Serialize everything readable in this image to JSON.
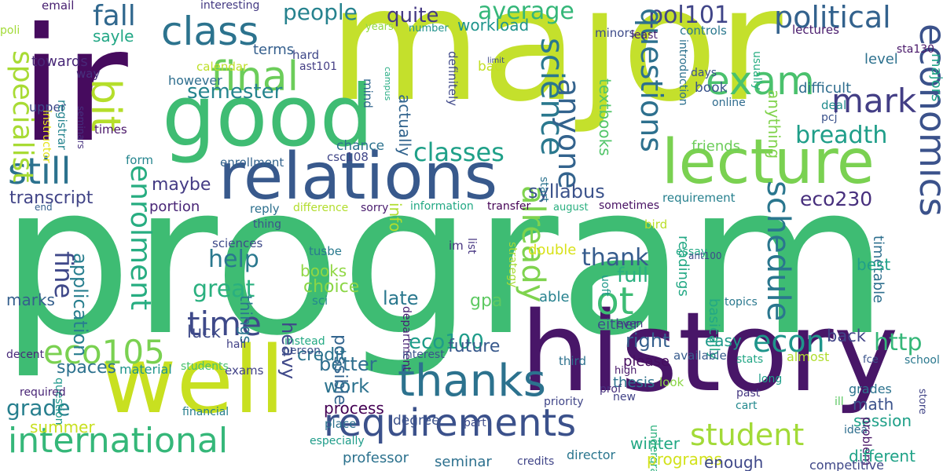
{
  "words": [
    {
      "text": "program",
      "color": "#3ebc73",
      "vertical": false
    },
    {
      "text": "major",
      "color": "#c4e02c",
      "vertical": false
    },
    {
      "text": "ir",
      "color": "#460b5e",
      "vertical": false
    },
    {
      "text": "history",
      "color": "#481668",
      "vertical": false
    },
    {
      "text": "well",
      "color": "#c8e020",
      "vertical": false
    },
    {
      "text": "good",
      "color": "#3fbc73",
      "vertical": false
    },
    {
      "text": "relations",
      "color": "#38598c",
      "vertical": false
    },
    {
      "text": "lecture",
      "color": "#7ad151",
      "vertical": false
    },
    {
      "text": "requirements",
      "color": "#3b518b",
      "vertical": false
    },
    {
      "text": "international",
      "color": "#35b779",
      "vertical": false
    },
    {
      "text": "thanks",
      "color": "#2c728e",
      "vertical": false
    },
    {
      "text": "class",
      "color": "#2c738e",
      "vertical": false
    },
    {
      "text": "final",
      "color": "#6ccd5a",
      "vertical": false
    },
    {
      "text": "eco105",
      "color": "#7ad151",
      "vertical": false
    },
    {
      "text": "time",
      "color": "#3e4989",
      "vertical": false
    },
    {
      "text": "lot",
      "color": "#3dbc74",
      "vertical": false
    },
    {
      "text": "student",
      "color": "#a2da37",
      "vertical": false
    },
    {
      "text": "bit",
      "color": "#b5de2b",
      "vertical": true
    },
    {
      "text": "still",
      "color": "#2c728e",
      "vertical": false
    },
    {
      "text": "mark",
      "color": "#433e85",
      "vertical": false
    },
    {
      "text": "exam",
      "color": "#4ac16d",
      "vertical": false
    },
    {
      "text": "political",
      "color": "#33628d",
      "vertical": false
    },
    {
      "text": "pol101",
      "color": "#404588",
      "vertical": false
    },
    {
      "text": "breadth",
      "color": "#1f9e89",
      "vertical": false
    },
    {
      "text": "average",
      "color": "#35b779",
      "vertical": false
    },
    {
      "text": "people",
      "color": "#26828e",
      "vertical": false
    },
    {
      "text": "quite",
      "color": "#443983",
      "vertical": false
    },
    {
      "text": "fall",
      "color": "#31688e",
      "vertical": false
    },
    {
      "text": "semester",
      "color": "#25848e",
      "vertical": false
    },
    {
      "text": "classes",
      "color": "#1fa088",
      "vertical": false
    },
    {
      "text": "science",
      "color": "#2a788e",
      "vertical": true
    },
    {
      "text": "questions",
      "color": "#2d708e",
      "vertical": true
    },
    {
      "text": "thank",
      "color": "#365c8d",
      "vertical": false
    },
    {
      "text": "help",
      "color": "#2a788e",
      "vertical": false
    },
    {
      "text": "great",
      "color": "#2ab07f",
      "vertical": false
    },
    {
      "text": "already",
      "color": "#7fd34e",
      "vertical": true
    },
    {
      "text": "econ",
      "color": "#1f958b",
      "vertical": false
    },
    {
      "text": "http",
      "color": "#35b779",
      "vertical": false
    },
    {
      "text": "economics",
      "color": "#3b528b",
      "vertical": true
    },
    {
      "text": "schedule",
      "color": "#2a768e",
      "vertical": true
    },
    {
      "text": "anyone",
      "color": "#33638d",
      "vertical": true
    },
    {
      "text": "enrolment",
      "color": "#27ad81",
      "vertical": true
    },
    {
      "text": "syllabus",
      "color": "#3b528b",
      "vertical": false
    },
    {
      "text": "right",
      "color": "#355f8d",
      "vertical": false
    },
    {
      "text": "grade",
      "color": "#277f8e",
      "vertical": false
    },
    {
      "text": "better",
      "color": "#2e6e8e",
      "vertical": false
    },
    {
      "text": "work",
      "color": "#2c728e",
      "vertical": false
    },
    {
      "text": "eco230",
      "color": "#472f7d",
      "vertical": false
    },
    {
      "text": "full",
      "color": "#2ab07f",
      "vertical": false
    },
    {
      "text": "eco100",
      "color": "#1e9c89",
      "vertical": false
    },
    {
      "text": "transcript",
      "color": "#414487",
      "vertical": false
    },
    {
      "text": "fine",
      "color": "#3f4889",
      "vertical": true
    },
    {
      "text": "maybe",
      "color": "#443b84",
      "vertical": false
    },
    {
      "text": "specialist",
      "color": "#a8db34",
      "vertical": true
    },
    {
      "text": "workload",
      "color": "#1f948c",
      "vertical": false
    },
    {
      "text": "sayle",
      "color": "#22a785",
      "vertical": false
    },
    {
      "text": "terms",
      "color": "#355f8d",
      "vertical": false
    },
    {
      "text": "towards",
      "color": "#482777",
      "vertical": false
    },
    {
      "text": "email",
      "color": "#482071",
      "vertical": false
    },
    {
      "text": "interesting",
      "color": "#443a83",
      "vertical": false
    },
    {
      "text": "calendar",
      "color": "#bddf26",
      "vertical": false
    },
    {
      "text": "hard",
      "color": "#3f4889",
      "vertical": false
    },
    {
      "text": "ast101",
      "color": "#433d84",
      "vertical": false
    },
    {
      "text": "bad",
      "color": "#c2df23",
      "vertical": false
    },
    {
      "text": "minors",
      "color": "#3e4c8a",
      "vertical": false
    },
    {
      "text": "controls",
      "color": "#2a788e",
      "vertical": false
    },
    {
      "text": "lectures",
      "color": "#481a6c",
      "vertical": false
    },
    {
      "text": "level",
      "color": "#2d718e",
      "vertical": false
    },
    {
      "text": "difficult",
      "color": "#2e6d8e",
      "vertical": false
    },
    {
      "text": "book",
      "color": "#3a548c",
      "vertical": false
    },
    {
      "text": "online",
      "color": "#2f6b8e",
      "vertical": false
    },
    {
      "text": "days",
      "color": "#3b518b",
      "vertical": false
    },
    {
      "text": "deal",
      "color": "#228c8d",
      "vertical": false
    },
    {
      "text": "pcj",
      "color": "#3b528b",
      "vertical": false
    },
    {
      "text": "sta130",
      "color": "#481769",
      "vertical": false
    },
    {
      "text": "majors",
      "color": "#1fa287",
      "vertical": true
    },
    {
      "text": "usually",
      "color": "#26ad81",
      "vertical": true
    },
    {
      "text": "least",
      "color": "#482172",
      "vertical": false
    },
    {
      "text": "friends",
      "color": "#6ccd5a",
      "vertical": false
    },
    {
      "text": "requirement",
      "color": "#27808e",
      "vertical": false
    },
    {
      "text": "textbooks",
      "color": "#52c569",
      "vertical": true
    },
    {
      "text": "introduction",
      "color": "#2d718e",
      "vertical": true
    },
    {
      "text": "start",
      "color": "#2c738e",
      "vertical": true
    },
    {
      "text": "anything",
      "color": "#81d34d",
      "vertical": true
    },
    {
      "text": "chance",
      "color": "#2c728e",
      "vertical": false
    },
    {
      "text": "actually",
      "color": "#32648e",
      "vertical": true
    },
    {
      "text": "definitely",
      "color": "#3f4889",
      "vertical": true
    },
    {
      "text": "mind",
      "color": "#31678e",
      "vertical": true
    },
    {
      "text": "campus",
      "color": "#25ab82",
      "vertical": true
    },
    {
      "text": "limit",
      "color": "#3e4989",
      "vertical": false
    },
    {
      "text": "years",
      "color": "#90d743",
      "vertical": false
    },
    {
      "text": "number",
      "color": "#20928c",
      "vertical": false
    },
    {
      "text": "poli",
      "color": "#a2da37",
      "vertical": false
    },
    {
      "text": "way",
      "color": "#46327e",
      "vertical": false
    },
    {
      "text": "upper",
      "color": "#3e4989",
      "vertical": false
    },
    {
      "text": "however",
      "color": "#2e6e8e",
      "vertical": false
    },
    {
      "text": "registrar",
      "color": "#25848e",
      "vertical": true
    },
    {
      "text": "instructor",
      "color": "#e5e419",
      "vertical": true
    },
    {
      "text": "seminars",
      "color": "#46307e",
      "vertical": true
    },
    {
      "text": "times",
      "color": "#481467",
      "vertical": false
    },
    {
      "text": "enrollment",
      "color": "#33638d",
      "vertical": false
    },
    {
      "text": "form",
      "color": "#25858e",
      "vertical": false
    },
    {
      "text": "csc108",
      "color": "#404688",
      "vertical": false
    },
    {
      "text": "portion",
      "color": "#482576",
      "vertical": false
    },
    {
      "text": "end",
      "color": "#355e8d",
      "vertical": false
    },
    {
      "text": "reply",
      "color": "#2d708e",
      "vertical": false
    },
    {
      "text": "difference",
      "color": "#b2dd2d",
      "vertical": false
    },
    {
      "text": "sorry",
      "color": "#481b6d",
      "vertical": false
    },
    {
      "text": "information",
      "color": "#22a884",
      "vertical": false
    },
    {
      "text": "transfer",
      "color": "#440154",
      "vertical": false
    },
    {
      "text": "august",
      "color": "#29af7f",
      "vertical": false
    },
    {
      "text": "sometimes",
      "color": "#471063",
      "vertical": false
    },
    {
      "text": "thing",
      "color": "#3b528b",
      "vertical": false
    },
    {
      "text": "bird",
      "color": "#bade28",
      "vertical": false
    },
    {
      "text": "info",
      "color": "#b0dd2f",
      "vertical": true
    },
    {
      "text": "sciences",
      "color": "#3e4a89",
      "vertical": false
    },
    {
      "text": "tusbe",
      "color": "#297a8e",
      "vertical": false
    },
    {
      "text": "im",
      "color": "#46327e",
      "vertical": false
    },
    {
      "text": "list",
      "color": "#453581",
      "vertical": true
    },
    {
      "text": "strategy",
      "color": "#a8db34",
      "vertical": true
    },
    {
      "text": "double",
      "color": "#d8e219",
      "vertical": false
    },
    {
      "text": "essay",
      "color": "#22a884",
      "vertical": false
    },
    {
      "text": "readings",
      "color": "#22a884",
      "vertical": true
    },
    {
      "text": "timetable",
      "color": "#2e6f8e",
      "vertical": true
    },
    {
      "text": "ant100",
      "color": "#3e4a89",
      "vertical": false
    },
    {
      "text": "basically",
      "color": "#22a884",
      "vertical": true
    },
    {
      "text": "best",
      "color": "#1fa088",
      "vertical": false
    },
    {
      "text": "topics",
      "color": "#2a788e",
      "vertical": false
    },
    {
      "text": "uoft",
      "color": "#1f998a",
      "vertical": true
    },
    {
      "text": "application",
      "color": "#277e8e",
      "vertical": true
    },
    {
      "text": "marks",
      "color": "#355f8d",
      "vertical": false
    },
    {
      "text": "books",
      "color": "#90d743",
      "vertical": false
    },
    {
      "text": "choice",
      "color": "#8bd646",
      "vertical": false
    },
    {
      "text": "sci",
      "color": "#23898e",
      "vertical": false
    },
    {
      "text": "gpa",
      "color": "#5ec962",
      "vertical": false
    },
    {
      "text": "department",
      "color": "#482173",
      "vertical": true
    },
    {
      "text": "able",
      "color": "#26818e",
      "vertical": false
    },
    {
      "text": "either",
      "color": "#3d4e8a",
      "vertical": false
    },
    {
      "text": "even",
      "color": "#453882",
      "vertical": false
    },
    {
      "text": "things",
      "color": "#2a768e",
      "vertical": true
    },
    {
      "text": "late",
      "color": "#2a788e",
      "vertical": false
    },
    {
      "text": "luck",
      "color": "#3e4a89",
      "vertical": false
    },
    {
      "text": "easy",
      "color": "#1f9a8a",
      "vertical": false
    },
    {
      "text": "back",
      "color": "#414487",
      "vertical": false
    },
    {
      "text": "spaces",
      "color": "#2c718e",
      "vertical": false
    },
    {
      "text": "future",
      "color": "#38598c",
      "vertical": false
    },
    {
      "text": "possible",
      "color": "#32648e",
      "vertical": true
    },
    {
      "text": "heavy",
      "color": "#3f4889",
      "vertical": true
    },
    {
      "text": "credit",
      "color": "#2c738e",
      "vertical": false
    },
    {
      "text": "process",
      "color": "#440154",
      "vertical": false
    },
    {
      "text": "instead",
      "color": "#23a983",
      "vertical": false
    },
    {
      "text": "person",
      "color": "#3c508b",
      "vertical": false
    },
    {
      "text": "hall",
      "color": "#424186",
      "vertical": false
    },
    {
      "text": "exams",
      "color": "#414287",
      "vertical": false
    },
    {
      "text": "students",
      "color": "#4ac16d",
      "vertical": false
    },
    {
      "text": "material",
      "color": "#1f958b",
      "vertical": false
    },
    {
      "text": "interest",
      "color": "#3a538b",
      "vertical": false
    },
    {
      "text": "third",
      "color": "#2d718e",
      "vertical": false
    },
    {
      "text": "please",
      "color": "#470d60",
      "vertical": false
    },
    {
      "text": "available",
      "color": "#375b8d",
      "vertical": false
    },
    {
      "text": "almost",
      "color": "#b0dd2f",
      "vertical": false
    },
    {
      "text": "fce",
      "color": "#3a548c",
      "vertical": false
    },
    {
      "text": "school",
      "color": "#2a788e",
      "vertical": false
    },
    {
      "text": "stats",
      "color": "#21a685",
      "vertical": false
    },
    {
      "text": "high",
      "color": "#48186a",
      "vertical": false
    },
    {
      "text": "long",
      "color": "#1e9d89",
      "vertical": false
    },
    {
      "text": "prof",
      "color": "#472f7d",
      "vertical": false
    },
    {
      "text": "thesis",
      "color": "#2c728e",
      "vertical": false
    },
    {
      "text": "look",
      "color": "#8bd646",
      "vertical": false
    },
    {
      "text": "past",
      "color": "#453882",
      "vertical": false
    },
    {
      "text": "cart",
      "color": "#23898e",
      "vertical": false
    },
    {
      "text": "grades",
      "color": "#2c738e",
      "vertical": false
    },
    {
      "text": "new",
      "color": "#414287",
      "vertical": false
    },
    {
      "text": "math",
      "color": "#3b528b",
      "vertical": false
    },
    {
      "text": "session",
      "color": "#1fa088",
      "vertical": false
    },
    {
      "text": "summer",
      "color": "#c8e020",
      "vertical": false
    },
    {
      "text": "question",
      "color": "#1f988b",
      "vertical": true
    },
    {
      "text": "decent",
      "color": "#482979",
      "vertical": false
    },
    {
      "text": "required",
      "color": "#482475",
      "vertical": false
    },
    {
      "text": "financial",
      "color": "#277f8e",
      "vertical": false
    },
    {
      "text": "place",
      "color": "#2d718e",
      "vertical": false
    },
    {
      "text": "degree",
      "color": "#3b518b",
      "vertical": false
    },
    {
      "text": "part",
      "color": "#3e4c8a",
      "vertical": false
    },
    {
      "text": "winter",
      "color": "#22a884",
      "vertical": false
    },
    {
      "text": "undergrad",
      "color": "#2db27d",
      "vertical": true
    },
    {
      "text": "ill",
      "color": "#5cc863",
      "vertical": false
    },
    {
      "text": "idea",
      "color": "#2e6e8e",
      "vertical": false
    },
    {
      "text": "problem",
      "color": "#481467",
      "vertical": true
    },
    {
      "text": "store",
      "color": "#414487",
      "vertical": true
    },
    {
      "text": "priority",
      "color": "#404588",
      "vertical": false
    },
    {
      "text": "different",
      "color": "#1fa287",
      "vertical": false
    },
    {
      "text": "programs",
      "color": "#d2e21b",
      "vertical": false
    },
    {
      "text": "director",
      "color": "#2a768e",
      "vertical": false
    },
    {
      "text": "enough",
      "color": "#3f4889",
      "vertical": false
    },
    {
      "text": "especially",
      "color": "#1e9c89",
      "vertical": false
    },
    {
      "text": "professor",
      "color": "#2c728e",
      "vertical": false
    },
    {
      "text": "seminar",
      "color": "#2d708e",
      "vertical": false
    },
    {
      "text": "credits",
      "color": "#404588",
      "vertical": false
    },
    {
      "text": "competitive",
      "color": "#3f4788",
      "vertical": false
    }
  ]
}
